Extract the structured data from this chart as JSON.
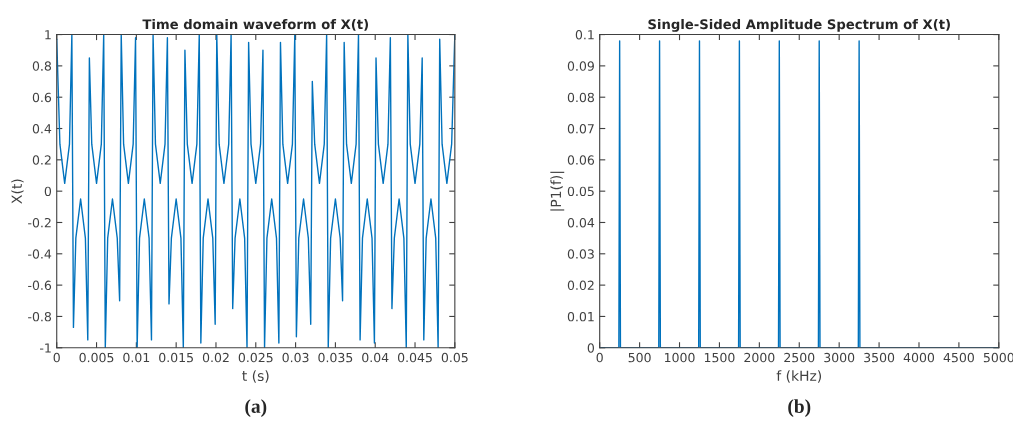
{
  "chart_data": [
    {
      "type": "line",
      "title": "Time domain waveform of X(t)",
      "xlabel": "t (s)",
      "ylabel": "X(t)",
      "x": [
        0,
        0.0004,
        0.001,
        0.0016,
        0.0019,
        0.0021,
        0.0024,
        0.003,
        0.0036,
        0.0039,
        0.0041,
        0.0044,
        0.005,
        0.0056,
        0.0059,
        0.0061,
        0.0064,
        0.007,
        0.0076,
        0.0079,
        0.0081,
        0.0084,
        0.009,
        0.0096,
        0.0099,
        0.0101,
        0.0104,
        0.011,
        0.0116,
        0.0119,
        0.0121,
        0.0124,
        0.013,
        0.0136,
        0.0139,
        0.0141,
        0.0144,
        0.015,
        0.0156,
        0.0159,
        0.0161,
        0.0164,
        0.017,
        0.0176,
        0.0179,
        0.0181,
        0.0184,
        0.019,
        0.0196,
        0.0199,
        0.0201,
        0.0204,
        0.021,
        0.0216,
        0.0219,
        0.0221,
        0.0224,
        0.023,
        0.0236,
        0.0239,
        0.0241,
        0.0244,
        0.025,
        0.0256,
        0.0259,
        0.0261,
        0.0264,
        0.027,
        0.0276,
        0.0279,
        0.0281,
        0.0284,
        0.029,
        0.0296,
        0.0299,
        0.0301,
        0.0304,
        0.031,
        0.0316,
        0.0319,
        0.0321,
        0.0324,
        0.033,
        0.0336,
        0.0339,
        0.0341,
        0.0344,
        0.035,
        0.0356,
        0.0359,
        0.0361,
        0.0364,
        0.037,
        0.0376,
        0.0379,
        0.0381,
        0.0384,
        0.039,
        0.0396,
        0.0399,
        0.0401,
        0.0404,
        0.041,
        0.0416,
        0.0419,
        0.0421,
        0.0424,
        0.043,
        0.0436,
        0.0439,
        0.0441,
        0.0444,
        0.045,
        0.0456,
        0.0459,
        0.0461,
        0.0464,
        0.047,
        0.0476,
        0.0479,
        0.0481,
        0.0484,
        0.049,
        0.0496,
        0.05
      ],
      "series": [
        {
          "color": "#0072bd",
          "values": [
            0.97,
            0.3,
            0.05,
            0.3,
            1.0,
            -0.87,
            -0.3,
            -0.05,
            -0.3,
            -0.95,
            0.85,
            0.3,
            0.05,
            0.3,
            1.0,
            -1.0,
            -0.3,
            -0.05,
            -0.3,
            -0.7,
            1.0,
            0.3,
            0.05,
            0.3,
            0.98,
            -1.0,
            -0.3,
            -0.05,
            -0.3,
            -0.95,
            1.0,
            0.3,
            0.05,
            0.3,
            0.98,
            -0.72,
            -0.3,
            -0.05,
            -0.3,
            -1.0,
            0.9,
            0.3,
            0.05,
            0.3,
            1.0,
            -0.97,
            -0.3,
            -0.05,
            -0.3,
            -0.85,
            1.0,
            0.3,
            0.05,
            0.3,
            1.0,
            -0.75,
            -0.3,
            -0.05,
            -0.3,
            -1.0,
            0.95,
            0.3,
            0.05,
            0.3,
            0.9,
            -1.0,
            -0.3,
            -0.05,
            -0.3,
            -0.97,
            0.95,
            0.3,
            0.05,
            0.3,
            1.0,
            -0.93,
            -0.3,
            -0.05,
            -0.3,
            -0.85,
            0.7,
            0.3,
            0.05,
            0.3,
            1.0,
            -1.0,
            -0.3,
            -0.05,
            -0.3,
            -0.7,
            0.95,
            0.3,
            0.05,
            0.3,
            1.0,
            -0.95,
            -0.3,
            -0.05,
            -0.3,
            -0.97,
            0.85,
            0.3,
            0.05,
            0.3,
            0.98,
            -0.75,
            -0.3,
            -0.05,
            -0.3,
            -1.0,
            1.0,
            0.3,
            0.05,
            0.3,
            0.85,
            -0.95,
            -0.3,
            -0.05,
            -0.3,
            -1.0,
            0.97,
            0.3,
            0.05,
            0.3,
            1.0
          ]
        }
      ],
      "xlim": [
        0,
        0.05
      ],
      "ylim": [
        -1,
        1
      ],
      "xticks": [
        0,
        0.005,
        0.01,
        0.015,
        0.02,
        0.025,
        0.03,
        0.035,
        0.04,
        0.045,
        0.05
      ],
      "yticks": [
        -1,
        -0.8,
        -0.6,
        -0.4,
        -0.2,
        0,
        0.2,
        0.4,
        0.6,
        0.8,
        1
      ],
      "annotations": [
        "(a)"
      ]
    },
    {
      "type": "line",
      "title": "Single-Sided Amplitude Spectrum of X(t)",
      "xlabel": "f (kHz)",
      "ylabel": "|P1(f)|",
      "x": [
        0,
        240,
        250,
        260,
        740,
        750,
        760,
        1240,
        1250,
        1260,
        1740,
        1750,
        1760,
        2240,
        2250,
        2260,
        2740,
        2750,
        2760,
        3240,
        3250,
        3260,
        5000
      ],
      "series": [
        {
          "color": "#0072bd",
          "values": [
            0,
            0,
            0.098,
            0,
            0,
            0.098,
            0,
            0,
            0.098,
            0,
            0,
            0.098,
            0,
            0,
            0.098,
            0,
            0,
            0.098,
            0,
            0,
            0.098,
            0,
            0
          ]
        }
      ],
      "xlim": [
        0,
        5000
      ],
      "ylim": [
        0,
        0.1
      ],
      "xticks": [
        0,
        500,
        1000,
        1500,
        2000,
        2500,
        3000,
        3500,
        4000,
        4500,
        5000
      ],
      "yticks": [
        0,
        0.01,
        0.02,
        0.03,
        0.04,
        0.05,
        0.06,
        0.07,
        0.08,
        0.09,
        0.1
      ],
      "annotations": [
        "(b)"
      ]
    }
  ]
}
